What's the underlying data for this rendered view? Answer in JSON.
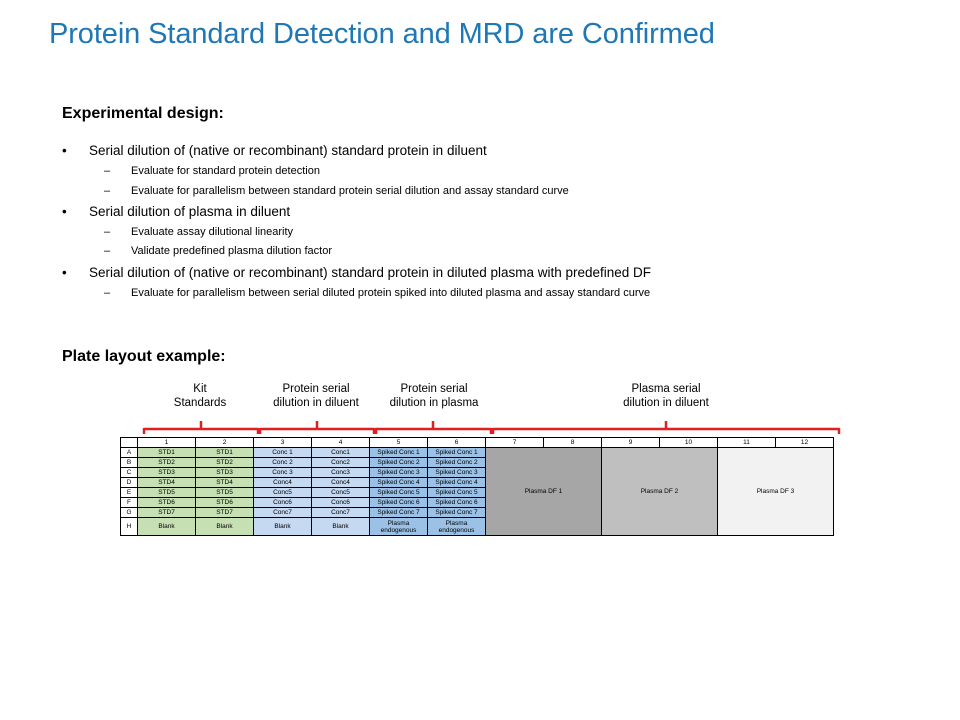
{
  "title": "Protein Standard Detection and MRD are Confirmed",
  "design_heading": "Experimental design:",
  "bullets": [
    {
      "level": 1,
      "mark": "•",
      "text": "Serial dilution of (native or recombinant) standard protein in diluent"
    },
    {
      "level": 2,
      "mark": "–",
      "text": "Evaluate for standard protein detection"
    },
    {
      "level": 2,
      "mark": "–",
      "text": "Evaluate for parallelism between standard protein serial dilution and assay standard curve"
    },
    {
      "level": 1,
      "mark": "•",
      "text": "Serial dilution of plasma in diluent"
    },
    {
      "level": 2,
      "mark": "–",
      "text": "Evaluate assay dilutional linearity"
    },
    {
      "level": 2,
      "mark": "–",
      "text": "Validate predefined plasma dilution factor"
    },
    {
      "level": 1,
      "mark": "•",
      "text": "Serial dilution of (native or recombinant) standard protein in diluted plasma with predefined DF"
    },
    {
      "level": 2,
      "mark": "–",
      "text": "Evaluate for parallelism between serial diluted protein spiked into diluted plasma and assay standard curve"
    }
  ],
  "plate_heading": "Plate layout example:",
  "group_labels": [
    {
      "line1": "Kit",
      "line2": "Standards"
    },
    {
      "line1": "Protein serial",
      "line2": "dilution in diluent"
    },
    {
      "line1": "Protein serial",
      "line2": "dilution in plasma"
    },
    {
      "line1": "Plasma serial",
      "line2": "dilution in diluent"
    }
  ],
  "plate": {
    "columns": [
      "1",
      "2",
      "3",
      "4",
      "5",
      "6",
      "7",
      "8",
      "9",
      "10",
      "11",
      "12"
    ],
    "rows": [
      {
        "label": "A",
        "std": "STD1",
        "conc": "Conc 1",
        "conc_b": "Conc1",
        "spk": "Spiked Conc 1"
      },
      {
        "label": "B",
        "std": "STD2",
        "conc": "Conc 2",
        "conc_b": "Conc2",
        "spk": "Spiked Conc 2"
      },
      {
        "label": "C",
        "std": "STD3",
        "conc": "Conc 3",
        "conc_b": "Conc3",
        "spk": "Spiked Conc 3"
      },
      {
        "label": "D",
        "std": "STD4",
        "conc": "Conc4",
        "conc_b": "Conc4",
        "spk": "Spiked Conc 4"
      },
      {
        "label": "E",
        "std": "STD5",
        "conc": "Conc5",
        "conc_b": "Conc5",
        "spk": "Spiked Conc 5"
      },
      {
        "label": "F",
        "std": "STD6",
        "conc": "Conc6",
        "conc_b": "Conc6",
        "spk": "Spiked Conc 6"
      },
      {
        "label": "G",
        "std": "STD7",
        "conc": "Conc7",
        "conc_b": "Conc7",
        "spk": "Spiked Conc 7"
      }
    ],
    "row_h": {
      "label": "H",
      "blank": "Blank",
      "plasma_endogenous": "Plasma endogenous"
    },
    "plasma_df": [
      "Plasma DF 1",
      "Plasma DF 2",
      "Plasma DF 3"
    ]
  },
  "colors": {
    "title": "#1f77b4",
    "bracket": "#e02020",
    "std_fill": "#c6e0b4",
    "conc_fill": "#c5d9f1",
    "spiked_fill": "#9bc2e6",
    "df1_fill": "#a6a6a6",
    "df2_fill": "#bfbfbf",
    "df3_fill": "#f2f2f2"
  }
}
